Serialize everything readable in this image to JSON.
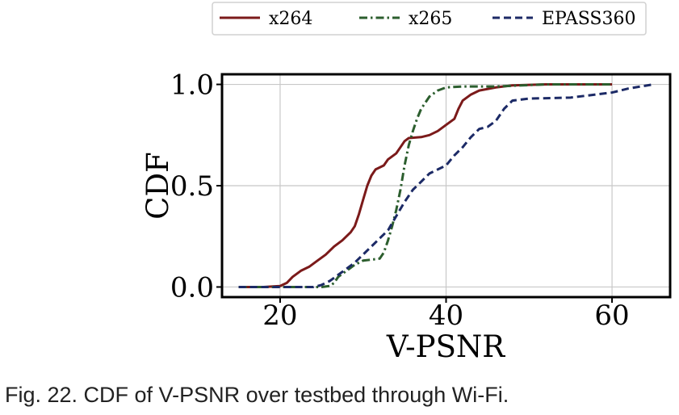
{
  "caption": "Fig. 22. CDF of V-PSNR over testbed through Wi-Fi.",
  "chart_data": {
    "type": "line",
    "xlabel": "V-PSNR",
    "ylabel": "CDF",
    "xlim": [
      13,
      67
    ],
    "ylim": [
      -0.05,
      1.05
    ],
    "xticks": [
      20,
      40,
      60
    ],
    "xtick_labels": [
      "20",
      "40",
      "60"
    ],
    "yticks": [
      0.0,
      0.5,
      1.0
    ],
    "ytick_labels": [
      "0.0",
      "0.5",
      "1.0"
    ],
    "grid": true,
    "legend_position": "top, outside plot area",
    "series": [
      {
        "name": "x264",
        "color": "#7b1a1a",
        "style": "solid",
        "points": [
          [
            15,
            0
          ],
          [
            18,
            0
          ],
          [
            20,
            0.005
          ],
          [
            20.8,
            0.02
          ],
          [
            21.5,
            0.05
          ],
          [
            22.5,
            0.08
          ],
          [
            23.5,
            0.1
          ],
          [
            24.5,
            0.13
          ],
          [
            25.5,
            0.16
          ],
          [
            26.5,
            0.2
          ],
          [
            27.5,
            0.23
          ],
          [
            28.5,
            0.27
          ],
          [
            29,
            0.3
          ],
          [
            29.5,
            0.36
          ],
          [
            30,
            0.43
          ],
          [
            30.5,
            0.5
          ],
          [
            31,
            0.55
          ],
          [
            31.5,
            0.58
          ],
          [
            32,
            0.59
          ],
          [
            32.5,
            0.6
          ],
          [
            33,
            0.63
          ],
          [
            34,
            0.66
          ],
          [
            34.5,
            0.69
          ],
          [
            35,
            0.72
          ],
          [
            35.5,
            0.735
          ],
          [
            37,
            0.74
          ],
          [
            38,
            0.75
          ],
          [
            39,
            0.77
          ],
          [
            40,
            0.8
          ],
          [
            41,
            0.83
          ],
          [
            41.5,
            0.88
          ],
          [
            42,
            0.92
          ],
          [
            43,
            0.95
          ],
          [
            44,
            0.97
          ],
          [
            46,
            0.985
          ],
          [
            48,
            0.995
          ],
          [
            52,
            1.0
          ],
          [
            60,
            1.0
          ]
        ]
      },
      {
        "name": "x265",
        "color": "#2c5e2e",
        "style": "dashdot",
        "points": [
          [
            15,
            0
          ],
          [
            20,
            0
          ],
          [
            25,
            0
          ],
          [
            26,
            0.005
          ],
          [
            26.5,
            0.02
          ],
          [
            27,
            0.05
          ],
          [
            28,
            0.08
          ],
          [
            29,
            0.11
          ],
          [
            30,
            0.13
          ],
          [
            31,
            0.135
          ],
          [
            32,
            0.14
          ],
          [
            32.5,
            0.17
          ],
          [
            33,
            0.23
          ],
          [
            33.5,
            0.3
          ],
          [
            34,
            0.38
          ],
          [
            34.5,
            0.48
          ],
          [
            35,
            0.6
          ],
          [
            35.5,
            0.7
          ],
          [
            36,
            0.77
          ],
          [
            36.5,
            0.83
          ],
          [
            37,
            0.88
          ],
          [
            38,
            0.94
          ],
          [
            39,
            0.97
          ],
          [
            40,
            0.985
          ],
          [
            42,
            0.99
          ],
          [
            46,
            0.99
          ],
          [
            52,
            1.0
          ],
          [
            60,
            1.0
          ]
        ]
      },
      {
        "name": "EPASS360",
        "color": "#1c2a66",
        "style": "dashed",
        "points": [
          [
            15,
            0
          ],
          [
            20,
            0
          ],
          [
            24,
            0
          ],
          [
            25,
            0.01
          ],
          [
            26,
            0.03
          ],
          [
            27,
            0.06
          ],
          [
            28,
            0.09
          ],
          [
            29,
            0.12
          ],
          [
            30,
            0.16
          ],
          [
            31,
            0.2
          ],
          [
            32,
            0.24
          ],
          [
            33,
            0.28
          ],
          [
            34,
            0.35
          ],
          [
            35,
            0.42
          ],
          [
            36,
            0.48
          ],
          [
            37,
            0.52
          ],
          [
            38,
            0.56
          ],
          [
            39,
            0.58
          ],
          [
            40,
            0.6
          ],
          [
            41,
            0.65
          ],
          [
            42,
            0.69
          ],
          [
            43,
            0.74
          ],
          [
            44,
            0.78
          ],
          [
            45,
            0.79
          ],
          [
            46,
            0.82
          ],
          [
            47,
            0.88
          ],
          [
            48,
            0.92
          ],
          [
            50,
            0.93
          ],
          [
            55,
            0.935
          ],
          [
            58,
            0.95
          ],
          [
            60,
            0.96
          ],
          [
            62,
            0.98
          ],
          [
            65,
            1.0
          ]
        ]
      }
    ]
  }
}
